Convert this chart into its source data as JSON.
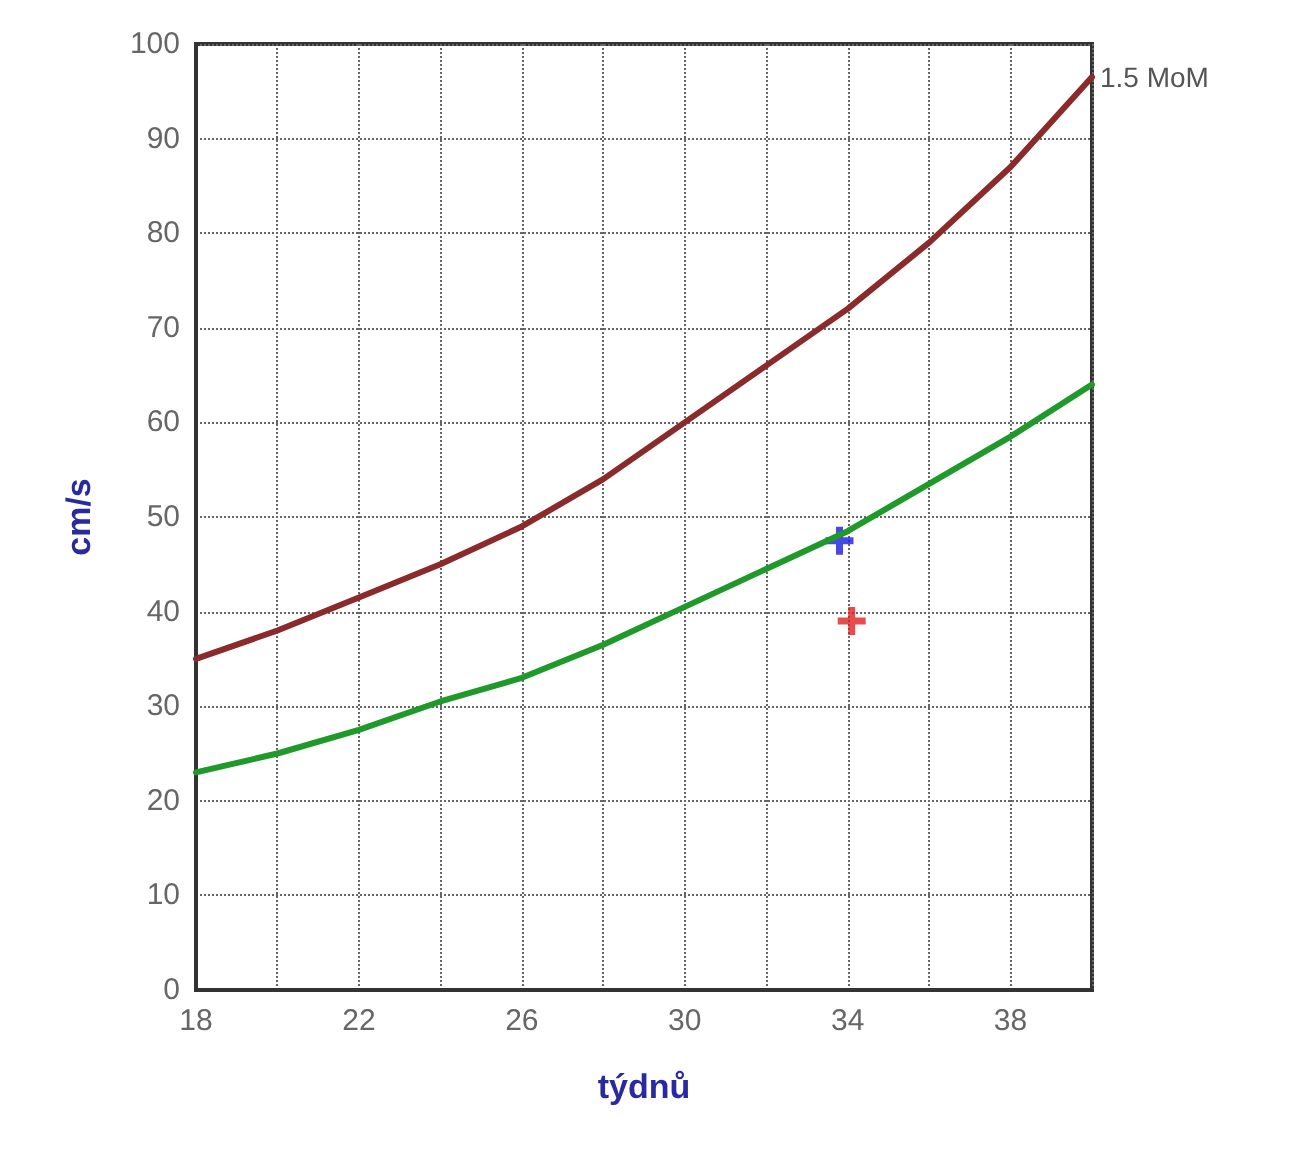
{
  "chart_data": {
    "type": "line",
    "xlabel": "týdnů",
    "ylabel": "cm/s",
    "xlim": [
      18,
      40
    ],
    "ylim": [
      0,
      100
    ],
    "xticks": [
      18,
      {
        "value": 20,
        "label": null
      },
      22,
      {
        "value": 24,
        "label": null
      },
      26,
      {
        "value": 28,
        "label": null
      },
      30,
      {
        "value": 32,
        "label": null
      },
      34,
      {
        "value": 36,
        "label": null
      },
      38,
      {
        "value": 40,
        "label": null
      }
    ],
    "yticks": [
      0,
      10,
      20,
      30,
      40,
      50,
      60,
      70,
      80,
      90,
      100
    ],
    "grid": true,
    "line_style": "solid",
    "marker": "none",
    "series": [
      {
        "name": "1.5 MoM",
        "color": "#8b2a2a",
        "x": [
          18,
          20,
          22,
          24,
          26,
          28,
          30,
          32,
          34,
          36,
          38,
          40
        ],
        "values": [
          35,
          38,
          41.5,
          45,
          49,
          54,
          60,
          66,
          72,
          79,
          87,
          96.5
        ]
      },
      {
        "color": "#1f9a2a",
        "x": [
          18,
          20,
          22,
          24,
          26,
          28,
          30,
          32,
          34,
          36,
          38,
          40
        ],
        "values": [
          23,
          25,
          27.5,
          30.5,
          33,
          36.5,
          40.5,
          44.5,
          48.5,
          53.5,
          58.5,
          64
        ]
      },
      {
        "type": "scatter",
        "marker": "cross",
        "color": "#1a1ae0",
        "x": [
          33.8
        ],
        "values": [
          47.5
        ]
      },
      {
        "type": "scatter",
        "marker": "cross",
        "color": "#e02020",
        "x": [
          34.1
        ],
        "values": [
          39
        ]
      }
    ]
  }
}
